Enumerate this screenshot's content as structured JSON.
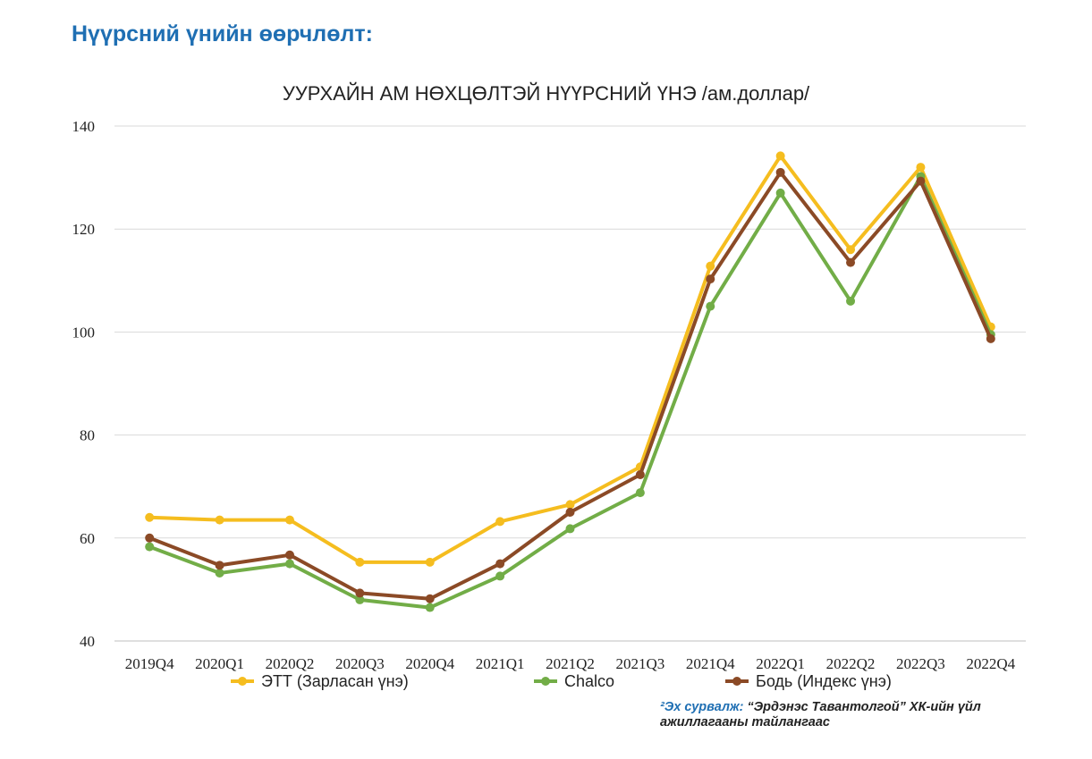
{
  "page": {
    "heading": "Нүүрсний үнийн өөрчлөлт:",
    "source_label": "²Эх сурвалж:",
    "source_text": " “Эрдэнэс Тавантолгой” ХК-ийн үйл ажиллагааны тайлангаас"
  },
  "chart_data": {
    "type": "line",
    "title": "УУРХАЙН АМ НӨХЦӨЛТЭЙ НҮҮРСНИЙ ҮНЭ /ам.доллар/",
    "xlabel": "",
    "ylabel": "",
    "categories": [
      "2019Q4",
      "2020Q1",
      "2020Q2",
      "2020Q3",
      "2020Q4",
      "2021Q1",
      "2021Q2",
      "2021Q3",
      "2021Q4",
      "2022Q1",
      "2022Q2",
      "2022Q3",
      "2022Q4"
    ],
    "ylim": [
      40,
      140
    ],
    "yticks": [
      40,
      60,
      80,
      100,
      120,
      140
    ],
    "grid": true,
    "legend_position": "bottom",
    "series": [
      {
        "name": "ЭТТ (Зарласан үнэ)",
        "color": "#f5bd1f",
        "values": [
          64,
          63.5,
          63.5,
          55.3,
          55.3,
          63.2,
          66.5,
          73.8,
          112.8,
          134.2,
          116,
          132,
          101
        ]
      },
      {
        "name": "Chalco",
        "color": "#72ad47",
        "values": [
          58.3,
          53.2,
          55,
          48,
          46.5,
          52.6,
          61.8,
          68.8,
          105,
          127,
          106,
          130.2,
          99.5
        ]
      },
      {
        "name": "Бодь (Индекс үнэ)",
        "color": "#8b4a26",
        "values": [
          60,
          54.7,
          56.7,
          49.3,
          48.2,
          55,
          65,
          72.3,
          110.3,
          131,
          113.5,
          129.3,
          98.7
        ]
      }
    ]
  }
}
